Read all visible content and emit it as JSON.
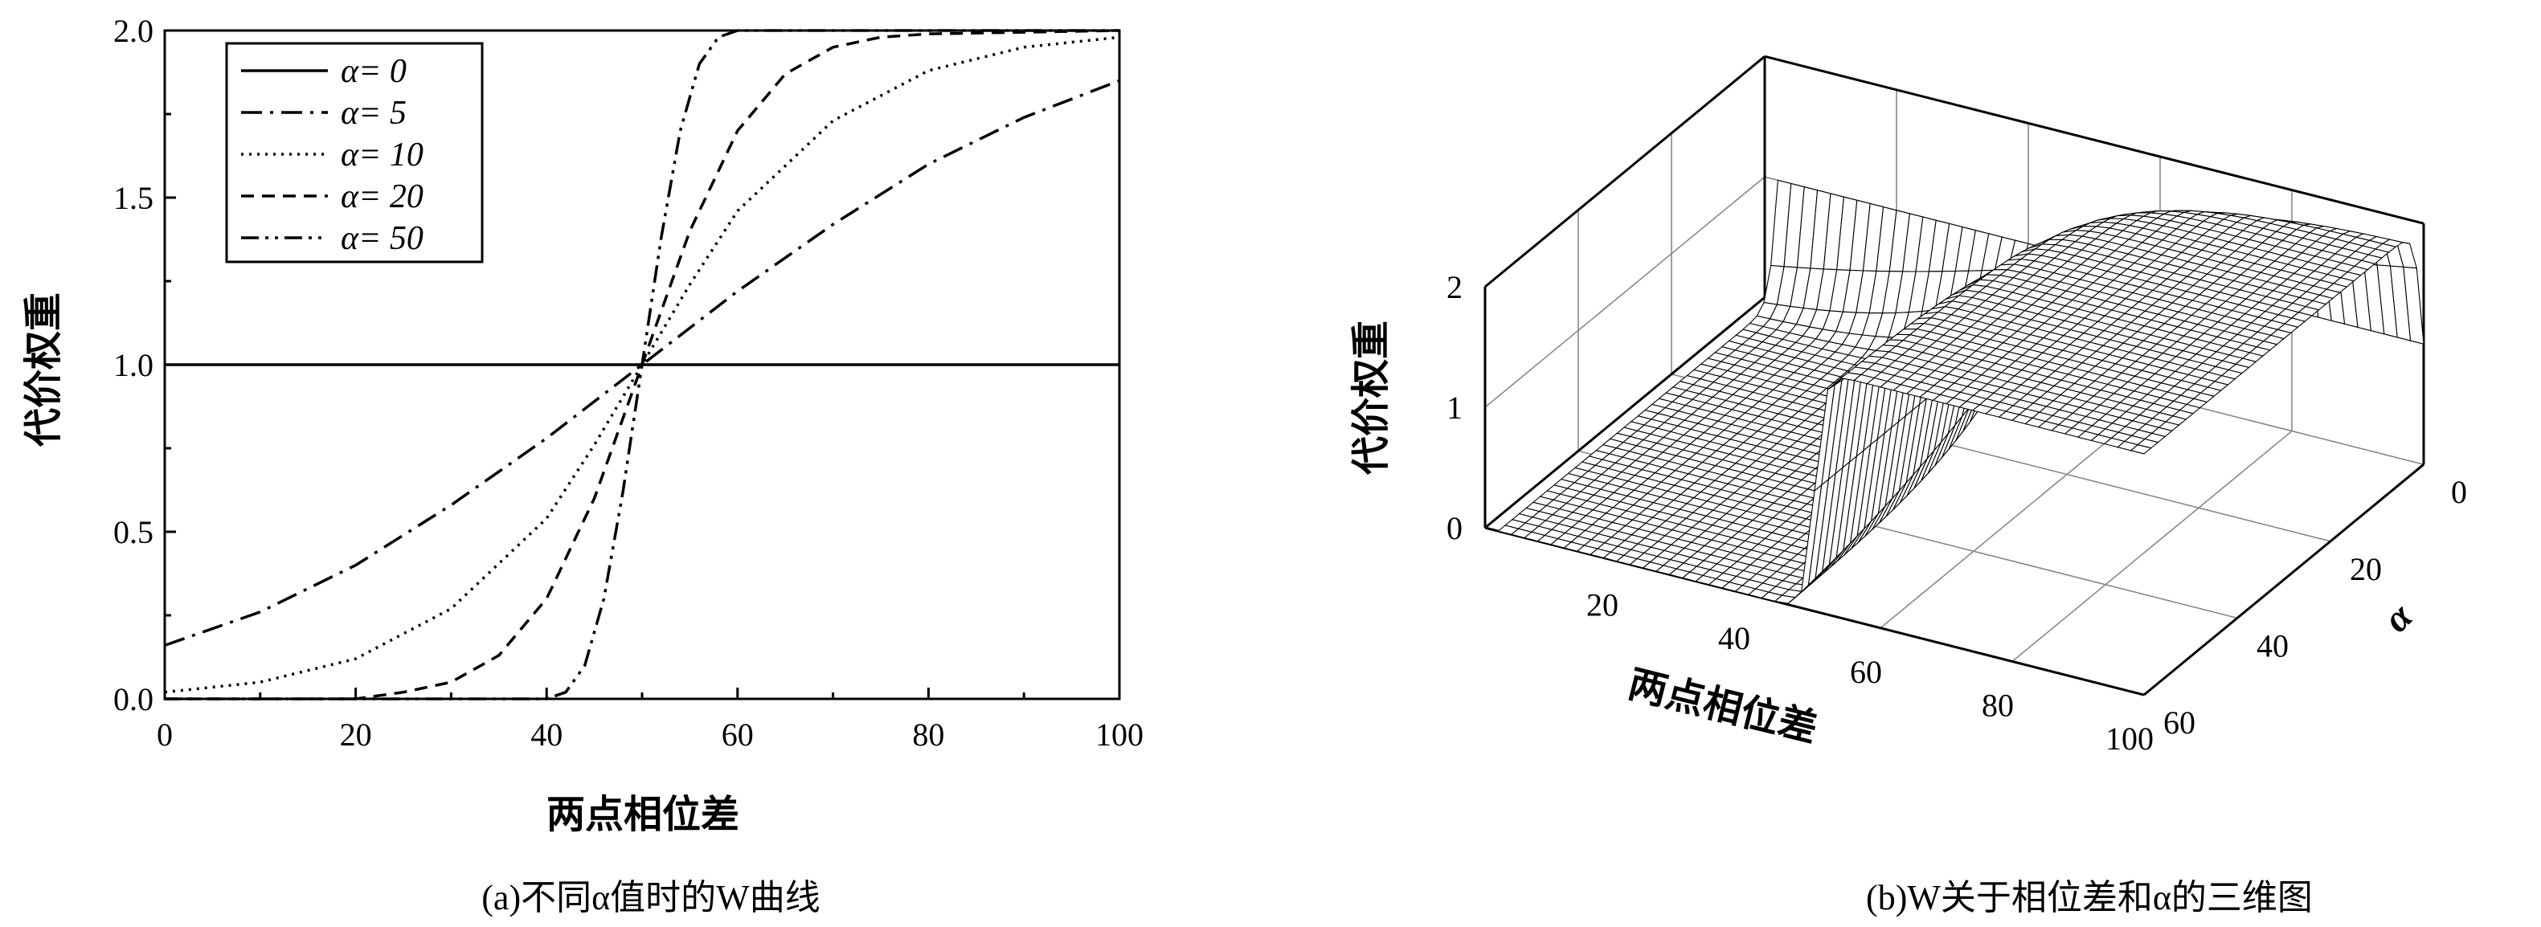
{
  "chart_data": [
    {
      "type": "line",
      "xlabel": "两点相位差",
      "ylabel": "代价权重",
      "caption": "(a)不同α值时的W曲线",
      "xlim": [
        0,
        100
      ],
      "ylim": [
        0,
        2
      ],
      "xticks": [
        "0",
        "20",
        "40",
        "60",
        "80",
        "100"
      ],
      "yticks": [
        "0.0",
        "0.5",
        "1.0",
        "1.5",
        "2.0"
      ],
      "grid": false,
      "legend_position": "top-left",
      "color": "#000000",
      "series": [
        {
          "name": "α= 0",
          "alpha": 0,
          "style": "solid",
          "x": [
            0,
            20,
            40,
            50,
            60,
            80,
            100
          ],
          "y": [
            1.0,
            1.0,
            1.0,
            1.0,
            1.0,
            1.0,
            1.0
          ]
        },
        {
          "name": "α= 5",
          "alpha": 5,
          "style": "dashdot",
          "x": [
            0,
            10,
            20,
            30,
            40,
            50,
            60,
            70,
            80,
            90,
            100
          ],
          "y": [
            0.16,
            0.26,
            0.4,
            0.58,
            0.78,
            1.0,
            1.22,
            1.42,
            1.6,
            1.74,
            1.85
          ]
        },
        {
          "name": "α= 10",
          "alpha": 10,
          "style": "dotted",
          "x": [
            0,
            10,
            20,
            30,
            40,
            45,
            50,
            55,
            60,
            70,
            80,
            90,
            100
          ],
          "y": [
            0.02,
            0.05,
            0.12,
            0.27,
            0.54,
            0.76,
            1.0,
            1.24,
            1.46,
            1.73,
            1.88,
            1.95,
            1.98
          ]
        },
        {
          "name": "α= 20",
          "alpha": 20,
          "style": "dashed",
          "x": [
            0,
            20,
            25,
            30,
            35,
            40,
            45,
            50,
            55,
            60,
            65,
            70,
            75,
            80,
            100
          ],
          "y": [
            0.0,
            0.0,
            0.02,
            0.05,
            0.13,
            0.3,
            0.6,
            1.0,
            1.4,
            1.7,
            1.87,
            1.95,
            1.98,
            1.99,
            2.0
          ]
        },
        {
          "name": "α= 50",
          "alpha": 50,
          "style": "dashdotdot",
          "x": [
            0,
            40,
            42,
            44,
            46,
            48,
            50,
            52,
            54,
            56,
            58,
            60,
            100
          ],
          "y": [
            0.0,
            0.0,
            0.02,
            0.1,
            0.3,
            0.62,
            1.0,
            1.38,
            1.7,
            1.9,
            1.98,
            2.0,
            2.0
          ]
        }
      ]
    },
    {
      "type": "surface3d",
      "xlabel": "两点相位差",
      "ylabel": "α",
      "zlabel": "代价权重",
      "caption": "(b)W关于相位差和α的三维图",
      "xlim": [
        0,
        100
      ],
      "ylim": [
        0,
        60
      ],
      "zlim": [
        0,
        2
      ],
      "xticks": [
        "20",
        "40",
        "60",
        "80",
        "100"
      ],
      "yticks": [
        "0",
        "20",
        "40",
        "60"
      ],
      "zticks": [
        "0",
        "1",
        "2"
      ],
      "grid": true,
      "color": "#000000"
    }
  ]
}
